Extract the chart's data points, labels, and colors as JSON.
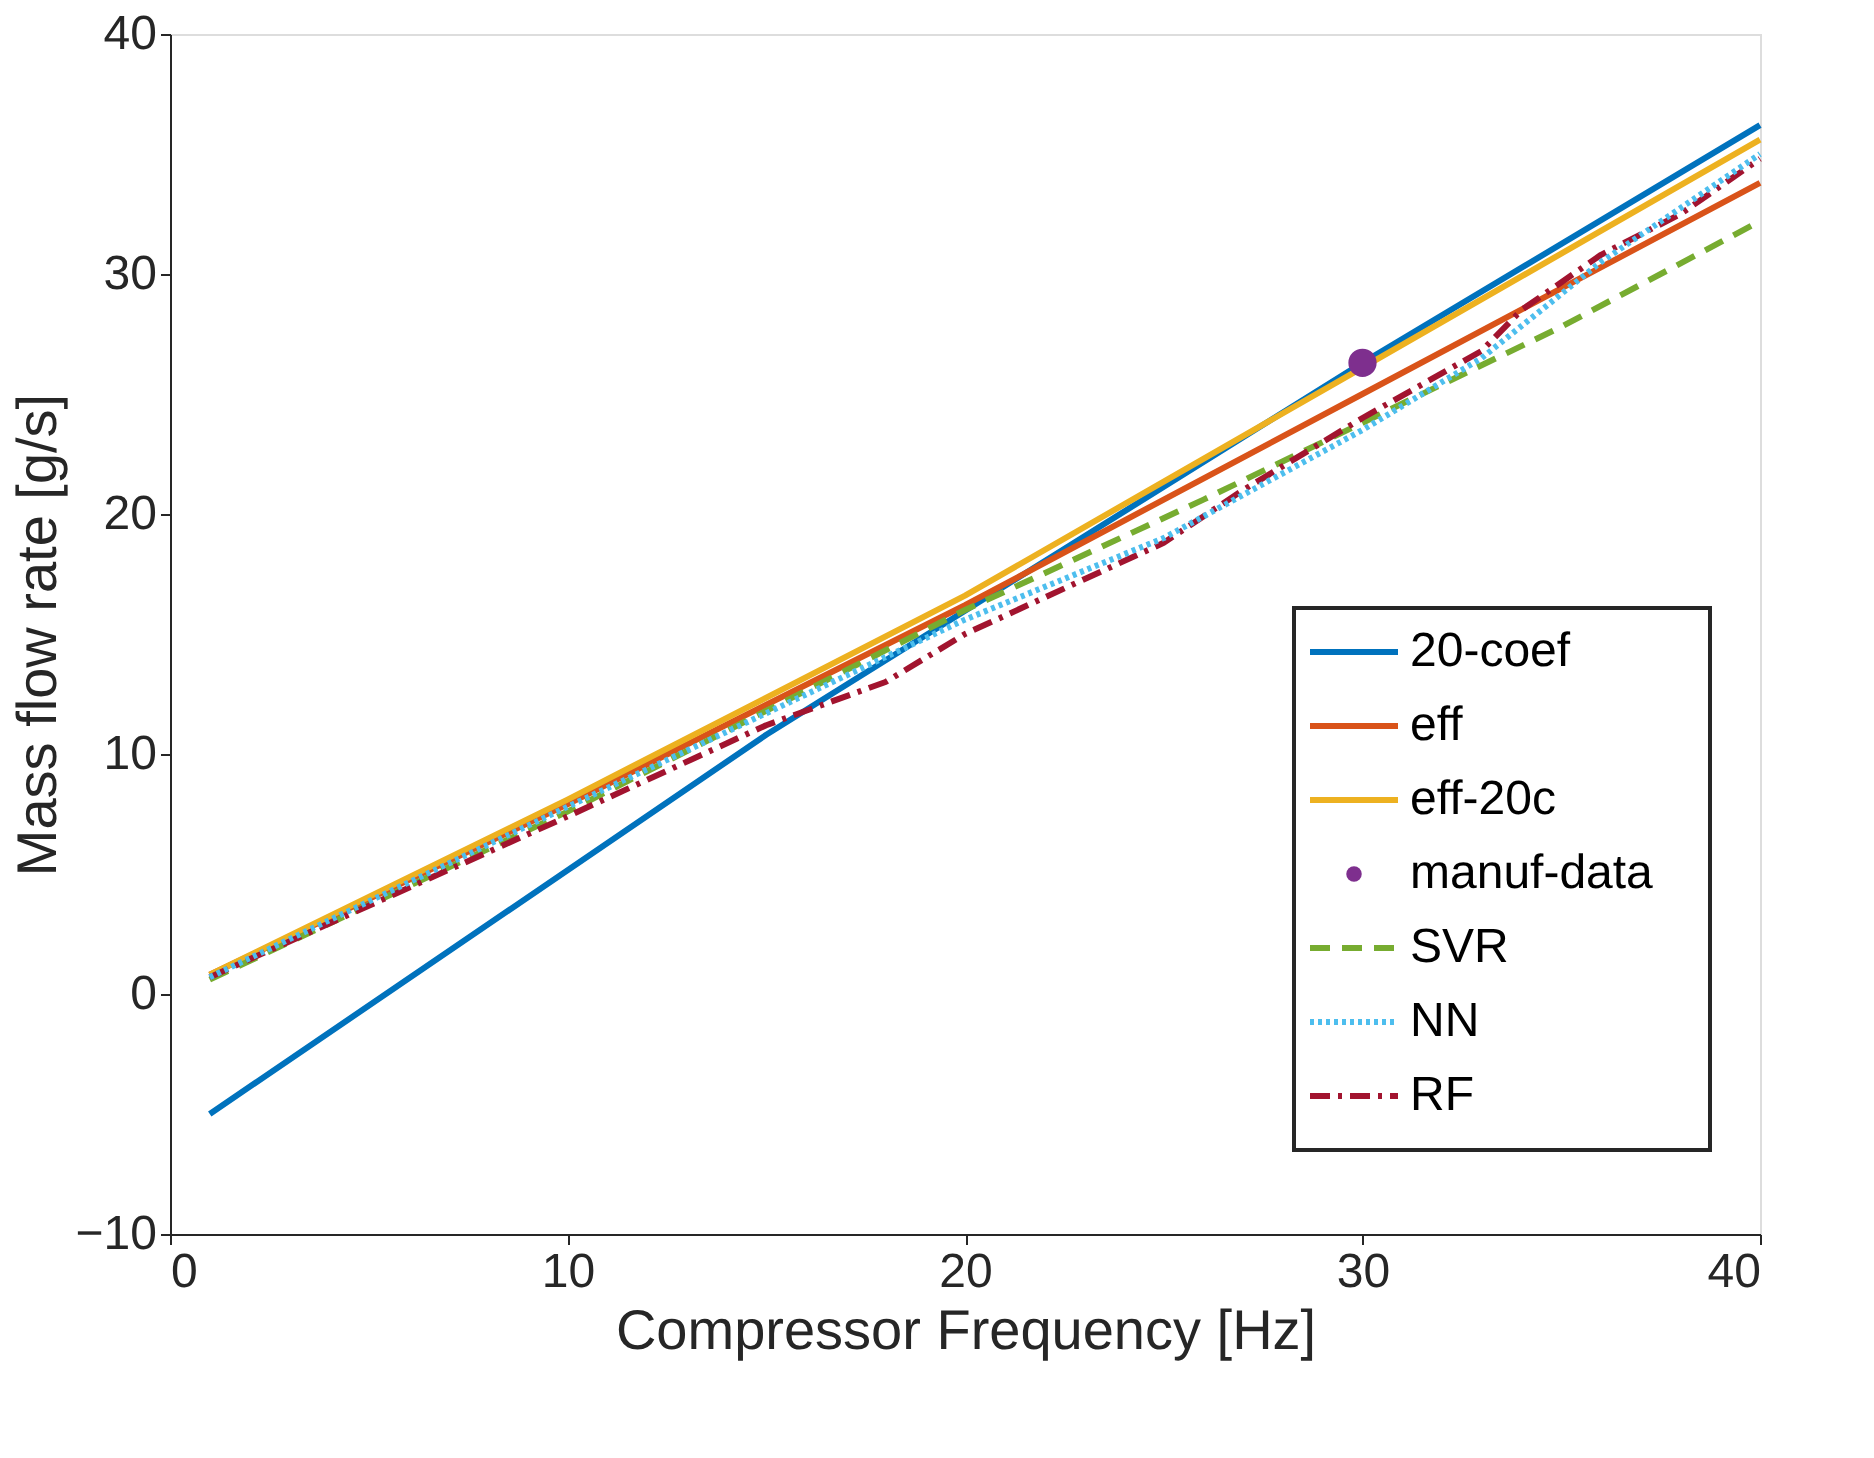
{
  "chart_data": {
    "type": "line",
    "xlabel": "Compressor Frequency [Hz]",
    "ylabel": "Mass flow rate [g/s]",
    "xlim": [
      0,
      40
    ],
    "xticks": [
      0,
      10,
      20,
      30,
      40
    ],
    "ylim": [
      -10,
      40
    ],
    "yticks": [
      -10,
      0,
      10,
      20,
      30,
      40
    ],
    "grid": false,
    "legend": "right",
    "series": [
      {
        "name": "20-coef",
        "color": "#0072bd",
        "line_style": "solid",
        "x": [
          1,
          15,
          30,
          40
        ],
        "values": [
          -5,
          10.8,
          26.3,
          36.2
        ]
      },
      {
        "name": "eff",
        "color": "#d95319",
        "line_style": "solid",
        "x": [
          1,
          10,
          20,
          30,
          40
        ],
        "values": [
          0.8,
          7.9,
          16.2,
          25.0,
          33.8
        ]
      },
      {
        "name": "eff-20c",
        "color": "#edb120",
        "line_style": "solid",
        "x": [
          1,
          10,
          20,
          30,
          40
        ],
        "values": [
          0.8,
          8.1,
          16.6,
          26.1,
          35.6
        ]
      },
      {
        "name": "manuf-data",
        "type": "scatter",
        "marker": "circle",
        "color": "#7e2f8e",
        "x": [
          30
        ],
        "values": [
          26.3
        ]
      },
      {
        "name": "SVR",
        "color": "#77ac30",
        "line_style": "dashed",
        "x": [
          1,
          10,
          20,
          26,
          30,
          35,
          40
        ],
        "values": [
          0.6,
          7.6,
          16.0,
          20.6,
          23.8,
          27.8,
          32.2
        ]
      },
      {
        "name": "NN",
        "color": "#4dbeee",
        "line_style": "dotted",
        "x": [
          1,
          10,
          20,
          25,
          30,
          33,
          36,
          40
        ],
        "values": [
          0.7,
          7.8,
          15.6,
          19.0,
          23.5,
          26.5,
          30.5,
          35.0
        ]
      },
      {
        "name": "RF",
        "color": "#a2142f",
        "line_style": "dashdot",
        "x": [
          1,
          10,
          15,
          18,
          20,
          25,
          27,
          30,
          33,
          34,
          36,
          38,
          40
        ],
        "values": [
          0.7,
          7.4,
          11.2,
          13.0,
          15.0,
          18.8,
          21.0,
          24.0,
          26.8,
          28.5,
          30.8,
          32.5,
          34.8
        ]
      }
    ]
  }
}
